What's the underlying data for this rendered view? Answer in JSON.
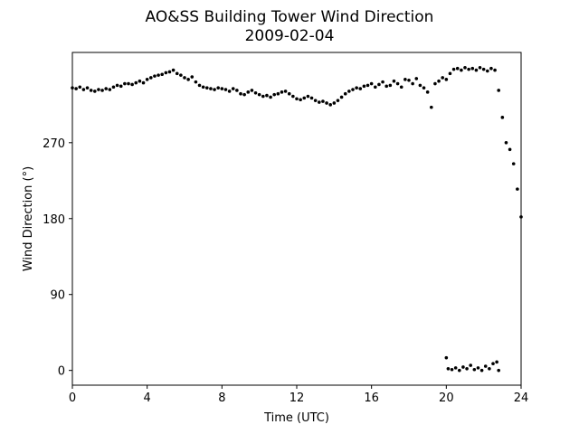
{
  "chart_data": {
    "type": "scatter",
    "title": "AO&SS Building Tower Wind Direction",
    "subtitle": "2009-02-04",
    "xlabel": "Time (UTC)",
    "ylabel": "Wind Direction (°)",
    "color": "#000000",
    "xlim": [
      0,
      24
    ],
    "xticks": [
      0,
      4,
      8,
      12,
      16,
      20,
      24
    ],
    "ylim": [
      -17.5,
      377
    ],
    "yticks": [
      0,
      90,
      180,
      270
    ],
    "x": [
      0,
      0.2,
      0.4,
      0.6,
      0.8,
      1.0,
      1.2,
      1.4,
      1.6,
      1.8,
      2.0,
      2.2,
      2.4,
      2.6,
      2.8,
      3.0,
      3.2,
      3.4,
      3.6,
      3.8,
      4.0,
      4.2,
      4.4,
      4.6,
      4.8,
      5.0,
      5.2,
      5.4,
      5.6,
      5.8,
      6.0,
      6.2,
      6.4,
      6.6,
      6.8,
      7.0,
      7.2,
      7.4,
      7.6,
      7.8,
      8.0,
      8.2,
      8.4,
      8.6,
      8.8,
      9.0,
      9.2,
      9.4,
      9.6,
      9.8,
      10.0,
      10.2,
      10.4,
      10.6,
      10.8,
      11.0,
      11.2,
      11.4,
      11.6,
      11.8,
      12.0,
      12.2,
      12.4,
      12.6,
      12.8,
      13.0,
      13.2,
      13.4,
      13.6,
      13.8,
      14.0,
      14.2,
      14.4,
      14.6,
      14.8,
      15.0,
      15.2,
      15.4,
      15.6,
      15.8,
      16.0,
      16.2,
      16.4,
      16.6,
      16.8,
      17.0,
      17.2,
      17.4,
      17.6,
      17.8,
      18.0,
      18.2,
      18.4,
      18.6,
      18.8,
      19.0,
      19.2,
      19.4,
      19.6,
      19.8,
      20.0,
      20.2,
      20.4,
      20.6,
      20.8,
      21.0,
      21.2,
      21.4,
      21.6,
      21.8,
      22.0,
      22.2,
      22.4,
      22.6,
      22.8,
      23.0,
      23.2,
      23.4,
      23.6,
      23.8,
      24.0,
      20.0,
      20.1,
      20.3,
      20.5,
      20.7,
      20.9,
      21.1,
      21.3,
      21.5,
      21.7,
      21.9,
      22.1,
      22.3,
      22.5,
      22.7,
      22.8
    ],
    "y": [
      335,
      334,
      336,
      333,
      335,
      332,
      331,
      333,
      332,
      334,
      333,
      336,
      338,
      337,
      340,
      340,
      339,
      341,
      343,
      341,
      345,
      347,
      349,
      350,
      351,
      353,
      354,
      356,
      352,
      350,
      347,
      345,
      348,
      342,
      338,
      336,
      335,
      334,
      333,
      335,
      334,
      333,
      331,
      334,
      332,
      328,
      327,
      330,
      332,
      329,
      327,
      325,
      326,
      324,
      327,
      328,
      330,
      331,
      328,
      325,
      322,
      321,
      323,
      325,
      323,
      320,
      318,
      319,
      317,
      315,
      317,
      320,
      324,
      328,
      331,
      333,
      335,
      334,
      337,
      338,
      340,
      336,
      339,
      342,
      337,
      338,
      343,
      340,
      336,
      345,
      344,
      340,
      346,
      338,
      335,
      330,
      312,
      340,
      343,
      347,
      345,
      352,
      357,
      358,
      356,
      359,
      357,
      358,
      356,
      359,
      357,
      355,
      358,
      356,
      332,
      300,
      270,
      262,
      245,
      215,
      182,
      15,
      2,
      1,
      3,
      0,
      4,
      2,
      6,
      1,
      3,
      0,
      5,
      2,
      8,
      10,
      0
    ]
  }
}
